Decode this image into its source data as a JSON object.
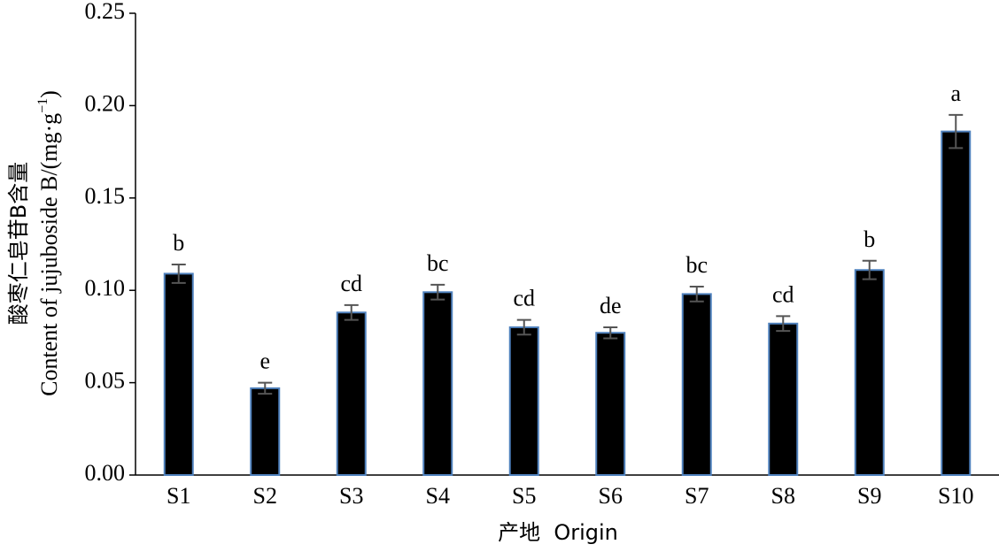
{
  "chart_data": {
    "type": "bar",
    "ylabel_cn": "酸枣仁皂苷B含量",
    "ylabel_en": "Content of jujuboside B/(mg·g",
    "ylabel_sup": "−1",
    "ylabel_end": ")",
    "xlabel": "产地  Origin",
    "categories": [
      "S1",
      "S2",
      "S3",
      "S4",
      "S5",
      "S6",
      "S7",
      "S8",
      "S9",
      "S10"
    ],
    "values": [
      0.109,
      0.047,
      0.088,
      0.099,
      0.08,
      0.077,
      0.098,
      0.082,
      0.111,
      0.186
    ],
    "errors": [
      0.005,
      0.003,
      0.004,
      0.004,
      0.004,
      0.003,
      0.004,
      0.004,
      0.005,
      0.009
    ],
    "annotations": [
      "b",
      "e",
      "cd",
      "bc",
      "cd",
      "de",
      "bc",
      "cd",
      "b",
      "a"
    ],
    "color": "#000000",
    "edge_color": "#4f81bd",
    "error_color": "#555555",
    "ylim": [
      0,
      0.25
    ],
    "yticks": [
      {
        "value": 0,
        "label": "0.00"
      },
      {
        "value": 0.05,
        "label": "0.05"
      },
      {
        "value": 0.1,
        "label": "0.10"
      },
      {
        "value": 0.15,
        "label": "0.15"
      },
      {
        "value": 0.2,
        "label": "0.20"
      },
      {
        "value": 0.25,
        "label": "0.25"
      }
    ],
    "grid": false
  }
}
